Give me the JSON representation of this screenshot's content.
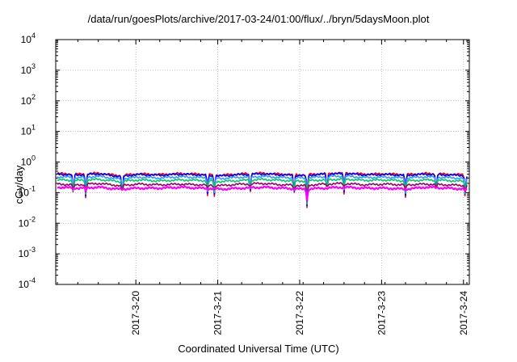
{
  "chart_data": {
    "type": "line",
    "title": "/data/run/goesPlots/archive/2017-03-24/01:00/flux/../bryn/5daysMoon.plot",
    "xlabel": "Coordinated Universal Time (UTC)",
    "ylabel": "cGy/day",
    "yscale": "log",
    "ylim": [
      0.0001,
      10000
    ],
    "y_ticks": [
      {
        "base": "10",
        "exp": "-4"
      },
      {
        "base": "10",
        "exp": "-3"
      },
      {
        "base": "10",
        "exp": "-2"
      },
      {
        "base": "10",
        "exp": "-1"
      },
      {
        "base": "10",
        "exp": "0"
      },
      {
        "base": "10",
        "exp": "1"
      },
      {
        "base": "10",
        "exp": "2"
      },
      {
        "base": "10",
        "exp": "3"
      },
      {
        "base": "10",
        "exp": "4"
      }
    ],
    "x_range": [
      "2017-03-19 01:00",
      "2017-03-24 01:00"
    ],
    "x_ticks": [
      "2017-3-20",
      "2017-3-21",
      "2017-3-22",
      "2017-3-23",
      "2017-3-24"
    ],
    "grid": true,
    "legend": "none",
    "x_dates": [
      "2017-03-19 01:00",
      "2017-03-19 07:00",
      "2017-03-19 13:00",
      "2017-03-19 19:00",
      "2017-03-20 01:00",
      "2017-03-20 07:00",
      "2017-03-20 13:00",
      "2017-03-20 19:00",
      "2017-03-21 01:00",
      "2017-03-21 07:00",
      "2017-03-21 13:00",
      "2017-03-21 19:00",
      "2017-03-22 01:00",
      "2017-03-22 07:00",
      "2017-03-22 13:00",
      "2017-03-22 19:00",
      "2017-03-23 01:00",
      "2017-03-23 07:00",
      "2017-03-23 13:00",
      "2017-03-23 19:00",
      "2017-03-24 01:00"
    ],
    "series": [
      {
        "color": "#ff0000",
        "values": [
          0.42,
          0.4,
          0.43,
          0.36,
          0.41,
          0.39,
          0.42,
          0.4,
          0.37,
          0.41,
          0.43,
          0.4,
          0.38,
          0.42,
          0.44,
          0.4,
          0.41,
          0.39,
          0.42,
          0.4,
          0.38
        ]
      },
      {
        "color": "#0000ff",
        "values": [
          0.4,
          0.38,
          0.41,
          0.34,
          0.39,
          0.37,
          0.4,
          0.38,
          0.35,
          0.39,
          0.41,
          0.38,
          0.36,
          0.4,
          0.42,
          0.38,
          0.39,
          0.37,
          0.4,
          0.38,
          0.36
        ]
      },
      {
        "color": "#3399ff",
        "values": [
          0.33,
          0.31,
          0.34,
          0.28,
          0.32,
          0.3,
          0.33,
          0.31,
          0.29,
          0.32,
          0.34,
          0.31,
          0.3,
          0.33,
          0.35,
          0.31,
          0.32,
          0.3,
          0.33,
          0.31,
          0.29
        ]
      },
      {
        "color": "#00cc66",
        "values": [
          0.26,
          0.25,
          0.27,
          0.23,
          0.26,
          0.24,
          0.26,
          0.25,
          0.23,
          0.25,
          0.27,
          0.25,
          0.24,
          0.26,
          0.28,
          0.25,
          0.26,
          0.24,
          0.26,
          0.25,
          0.23
        ]
      },
      {
        "color": "#990066",
        "values": [
          0.19,
          0.18,
          0.2,
          0.17,
          0.19,
          0.18,
          0.19,
          0.18,
          0.17,
          0.19,
          0.2,
          0.18,
          0.17,
          0.19,
          0.2,
          0.18,
          0.19,
          0.18,
          0.19,
          0.18,
          0.17
        ]
      },
      {
        "color": "#ff00ff",
        "values": [
          0.15,
          0.14,
          0.15,
          0.13,
          0.14,
          0.14,
          0.15,
          0.14,
          0.13,
          0.14,
          0.15,
          0.14,
          0.13,
          0.14,
          0.15,
          0.14,
          0.14,
          0.13,
          0.15,
          0.14,
          0.13
        ]
      }
    ],
    "dips": [
      {
        "date": "2017-03-19 05:40",
        "min": 0.07
      },
      {
        "date": "2017-03-19 09:20",
        "min": 0.06
      },
      {
        "date": "2017-03-19 20:00",
        "min": 0.065
      },
      {
        "date": "2017-03-20 21:00",
        "min": 0.08
      },
      {
        "date": "2017-03-20 23:00",
        "min": 0.075
      },
      {
        "date": "2017-03-21 09:30",
        "min": 0.09
      },
      {
        "date": "2017-03-21 22:20",
        "min": 0.07
      },
      {
        "date": "2017-03-22 02:10",
        "min": 0.03
      },
      {
        "date": "2017-03-22 08:00",
        "min": 0.09
      },
      {
        "date": "2017-03-22 13:00",
        "min": 0.09
      },
      {
        "date": "2017-03-23 07:00",
        "min": 0.07
      },
      {
        "date": "2017-03-23 16:00",
        "min": 0.09
      },
      {
        "date": "2017-03-24 00:30",
        "min": 0.06
      }
    ]
  }
}
